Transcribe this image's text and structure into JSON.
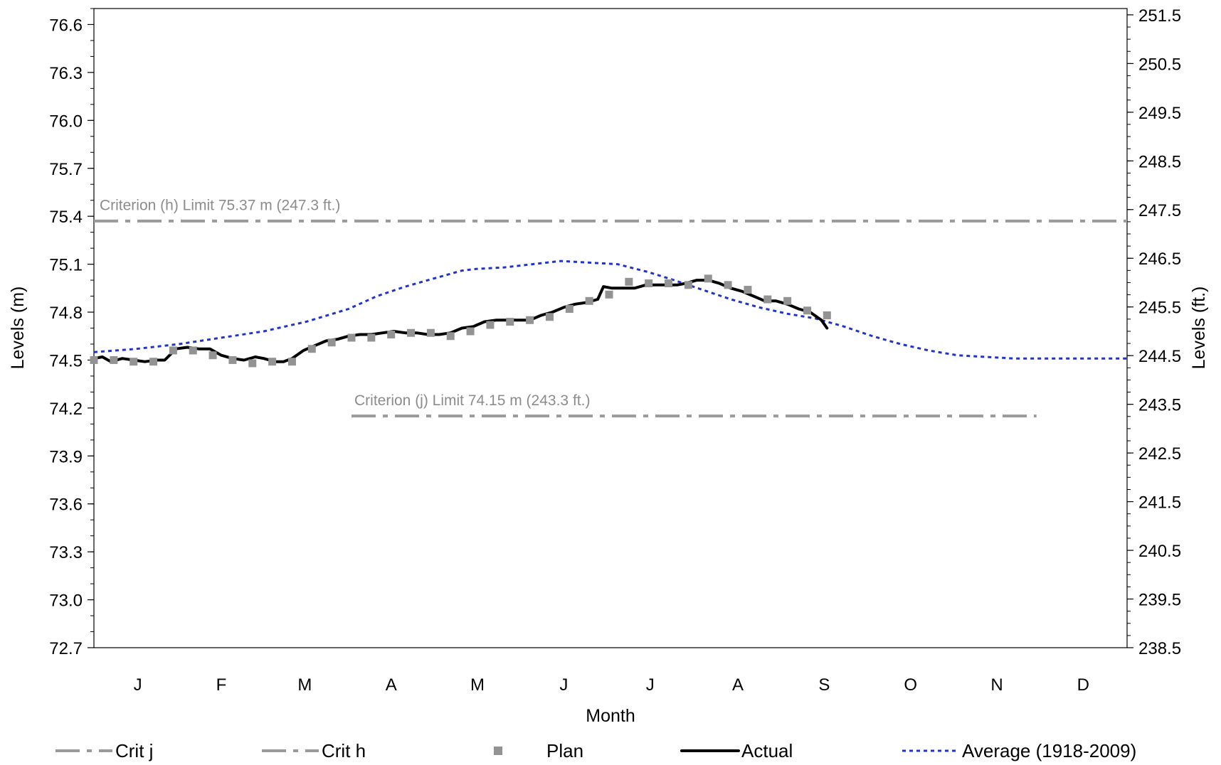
{
  "chart_data": {
    "type": "line",
    "xlabel": "Month",
    "ylabel": "Levels (m)",
    "y2label": "Levels (ft.)",
    "ylim": [
      72.7,
      76.7
    ],
    "y2lim": [
      238.5,
      251.63
    ],
    "xlim": [
      0,
      365
    ],
    "x_unit": "day of year",
    "yticks": [
      "76.6",
      "76.3",
      "76.0",
      "75.7",
      "75.4",
      "75.1",
      "74.8",
      "74.5",
      "74.2",
      "73.9",
      "73.6",
      "73.3",
      "73.0",
      "72.7"
    ],
    "y2ticks": [
      "251.5",
      "250.5",
      "249.5",
      "248.5",
      "247.5",
      "246.5",
      "245.5",
      "244.5",
      "243.5",
      "242.5",
      "241.5",
      "240.5",
      "239.5",
      "238.5"
    ],
    "month_labels": [
      "J",
      "F",
      "M",
      "A",
      "M",
      "J",
      "J",
      "A",
      "S",
      "O",
      "N",
      "D"
    ],
    "month_centers": [
      15.5,
      45,
      74.5,
      105,
      135.5,
      166,
      196.5,
      227.5,
      258,
      288.5,
      319,
      349.5
    ],
    "grid": false,
    "legend_position": "bottom",
    "annotations": [
      {
        "text": "Criterion (h) Limit 75.37 m (247.3 ft.)",
        "x": 1,
        "y": 75.42
      },
      {
        "text": "Criterion (j) Limit 74.15 m (243.3 ft.)",
        "x": 91,
        "y": 74.2
      }
    ],
    "series": [
      {
        "name": "Crit j",
        "style": "dash-dot",
        "color": "#9a9a9a",
        "x": [
          91,
          333
        ],
        "y": [
          74.15,
          74.15
        ]
      },
      {
        "name": "Crit h",
        "style": "dash-dot",
        "color": "#9a9a9a",
        "x": [
          0,
          365
        ],
        "y": [
          75.37,
          75.37
        ]
      },
      {
        "name": "Plan",
        "style": "square-marker",
        "color": "#939393",
        "x": [
          0,
          7,
          14,
          21,
          28,
          35,
          42,
          49,
          56,
          63,
          70,
          77,
          84,
          91,
          98,
          105,
          112,
          119,
          126,
          133,
          140,
          147,
          154,
          161,
          168,
          175,
          182,
          189,
          196,
          203,
          210,
          217,
          224,
          231,
          238,
          245,
          252,
          259
        ],
        "y": [
          74.5,
          74.5,
          74.49,
          74.49,
          74.56,
          74.56,
          74.53,
          74.5,
          74.48,
          74.49,
          74.49,
          74.57,
          74.61,
          74.64,
          74.64,
          74.66,
          74.67,
          74.67,
          74.65,
          74.68,
          74.72,
          74.74,
          74.75,
          74.77,
          74.82,
          74.87,
          74.91,
          74.99,
          74.98,
          74.98,
          74.97,
          75.01,
          74.97,
          74.94,
          74.88,
          74.87,
          74.81,
          74.78
        ]
      },
      {
        "name": "Actual",
        "style": "solid",
        "color": "#000000",
        "x": [
          0,
          3,
          6,
          10,
          14,
          18,
          22,
          25,
          29,
          33,
          37,
          41,
          45,
          49,
          53,
          57,
          60,
          64,
          67,
          70,
          74,
          78,
          82,
          86,
          90,
          94,
          98,
          102,
          106,
          110,
          114,
          118,
          122,
          126,
          130,
          134,
          138,
          142,
          146,
          150,
          154,
          158,
          162,
          166,
          170,
          174,
          178,
          180,
          183,
          187,
          191,
          195,
          199,
          203,
          206,
          209,
          213,
          217,
          221,
          225,
          229,
          233,
          237,
          241,
          245,
          249,
          253,
          257,
          259
        ],
        "y": [
          74.51,
          74.52,
          74.49,
          74.51,
          74.5,
          74.49,
          74.5,
          74.5,
          74.57,
          74.58,
          74.57,
          74.57,
          74.53,
          74.51,
          74.5,
          74.52,
          74.51,
          74.49,
          74.49,
          74.51,
          74.56,
          74.59,
          74.62,
          74.63,
          74.65,
          74.66,
          74.66,
          74.67,
          74.68,
          74.67,
          74.67,
          74.66,
          74.66,
          74.67,
          74.7,
          74.71,
          74.74,
          74.75,
          74.75,
          74.75,
          74.75,
          74.78,
          74.8,
          74.83,
          74.85,
          74.86,
          74.88,
          74.96,
          74.95,
          74.95,
          74.95,
          74.97,
          74.97,
          74.97,
          74.97,
          74.98,
          75.0,
          75.0,
          74.98,
          74.95,
          74.93,
          74.9,
          74.87,
          74.87,
          74.85,
          74.82,
          74.8,
          74.75,
          74.7
        ]
      },
      {
        "name": "Average (1918-2009)",
        "style": "dotted",
        "color": "#2233cc",
        "x": [
          0,
          15,
          30,
          45,
          60,
          75,
          90,
          100,
          110,
          120,
          130,
          135,
          145,
          155,
          165,
          175,
          185,
          196,
          205,
          215,
          225,
          235,
          245,
          255,
          265,
          275,
          285,
          295,
          305,
          315,
          325,
          335,
          345,
          355,
          365
        ],
        "y": [
          74.55,
          74.57,
          74.6,
          74.64,
          74.68,
          74.74,
          74.82,
          74.9,
          74.96,
          75.01,
          75.06,
          75.07,
          75.08,
          75.1,
          75.12,
          75.11,
          75.1,
          75.05,
          75.0,
          74.94,
          74.88,
          74.83,
          74.79,
          74.76,
          74.71,
          74.65,
          74.6,
          74.56,
          74.53,
          74.52,
          74.51,
          74.51,
          74.51,
          74.51,
          74.51
        ]
      }
    ]
  }
}
